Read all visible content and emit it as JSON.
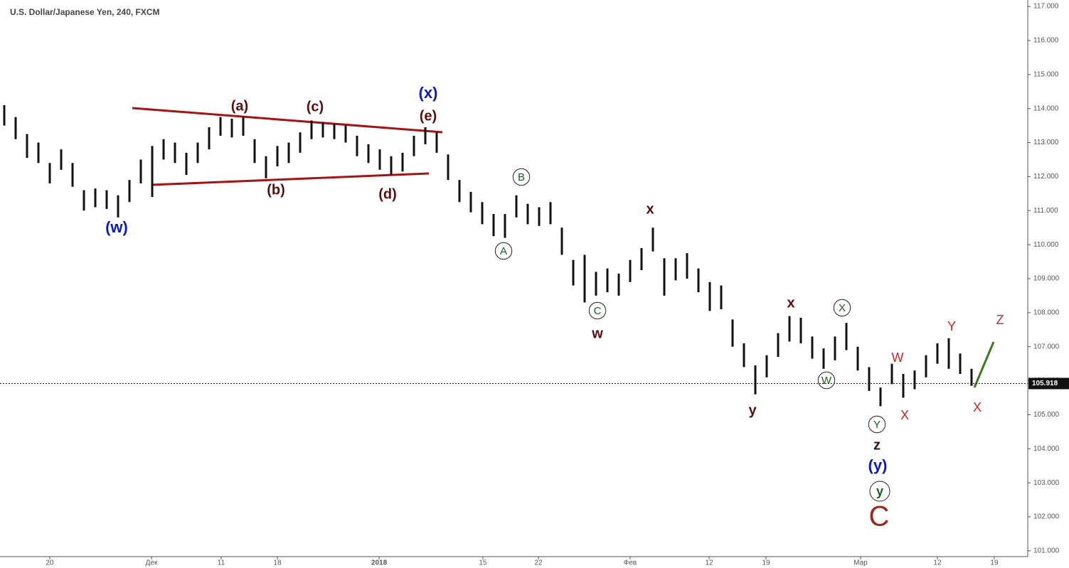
{
  "chart_data": {
    "type": "range-bar",
    "title": "U.S. Dollar/Japanese Yen, 240, FXCM",
    "color": "#111111",
    "x": [
      -4,
      -3,
      -2,
      -1,
      0,
      1,
      2,
      3,
      4,
      5,
      6,
      7,
      8,
      9,
      10,
      11,
      12,
      13,
      14,
      15,
      16,
      17,
      18,
      19,
      20,
      21,
      22,
      23,
      24,
      25,
      26,
      27,
      28,
      29,
      30,
      31,
      32,
      33,
      34,
      35,
      36,
      37,
      38,
      39,
      40,
      41,
      42,
      43,
      44,
      45,
      46,
      47,
      48,
      49,
      50,
      51,
      52,
      53,
      54,
      55,
      56,
      57,
      58,
      59,
      60,
      61,
      62,
      63,
      64,
      65,
      66,
      67,
      68,
      69,
      70,
      71,
      72,
      73,
      74,
      75,
      76,
      77,
      78,
      79,
      80,
      81
    ],
    "low": [
      113.5,
      113.1,
      112.55,
      112.4,
      111.8,
      112.2,
      111.7,
      111.0,
      111.1,
      111.05,
      110.8,
      111.25,
      111.8,
      111.4,
      112.5,
      112.4,
      112.05,
      112.4,
      112.8,
      113.2,
      113.15,
      113.2,
      112.4,
      111.95,
      112.3,
      112.4,
      112.7,
      113.1,
      113.15,
      113.1,
      113.0,
      112.6,
      112.4,
      112.2,
      112.05,
      112.15,
      112.6,
      112.95,
      112.7,
      111.9,
      111.25,
      110.95,
      110.6,
      110.25,
      110.2,
      110.8,
      110.6,
      110.55,
      110.6,
      109.7,
      108.8,
      108.3,
      108.5,
      108.6,
      108.5,
      108.9,
      109.25,
      109.8,
      108.5,
      108.95,
      109.0,
      108.6,
      108.05,
      108.1,
      107.0,
      106.4,
      105.6,
      106.1,
      106.7,
      107.15,
      107.1,
      106.65,
      106.35,
      106.6,
      106.9,
      106.3,
      105.7,
      105.25,
      105.9,
      105.5,
      105.75,
      106.1,
      106.5,
      106.35,
      106.2,
      105.85
    ],
    "high": [
      114.1,
      113.75,
      113.25,
      113.0,
      112.4,
      112.8,
      112.4,
      111.6,
      111.65,
      111.6,
      111.45,
      111.9,
      112.5,
      112.9,
      113.1,
      113.0,
      112.7,
      113.0,
      113.45,
      113.75,
      113.7,
      113.75,
      113.1,
      112.6,
      112.9,
      113.0,
      113.3,
      113.65,
      113.6,
      113.55,
      113.5,
      113.2,
      112.95,
      112.8,
      112.6,
      112.7,
      113.2,
      113.45,
      113.3,
      112.65,
      111.9,
      111.55,
      111.25,
      110.9,
      110.9,
      111.45,
      111.2,
      111.1,
      111.25,
      110.5,
      109.55,
      109.7,
      109.2,
      109.3,
      109.15,
      109.55,
      109.9,
      110.5,
      109.6,
      109.6,
      109.75,
      109.3,
      108.9,
      108.8,
      107.8,
      107.1,
      106.45,
      106.75,
      107.4,
      107.9,
      107.85,
      107.3,
      106.95,
      107.3,
      107.7,
      107.0,
      106.4,
      105.8,
      106.5,
      106.2,
      106.3,
      106.75,
      107.1,
      107.25,
      106.8,
      106.35
    ],
    "xlim": [
      -4.375,
      85.94
    ],
    "xticks": [
      {
        "value": 0,
        "label": "20"
      },
      {
        "value": 8.94,
        "label": "Дек"
      },
      {
        "value": 15.06,
        "label": "11"
      },
      {
        "value": 20,
        "label": "18"
      },
      {
        "value": 28.94,
        "label": "2018"
      },
      {
        "value": 38.06,
        "label": "15"
      },
      {
        "value": 42.94,
        "label": "22"
      },
      {
        "value": 51,
        "label": "Фев"
      },
      {
        "value": 57.94,
        "label": "12"
      },
      {
        "value": 62.94,
        "label": "19"
      },
      {
        "value": 71.25,
        "label": "Мар"
      },
      {
        "value": 78,
        "label": "12"
      },
      {
        "value": 83,
        "label": "19"
      }
    ],
    "ylim": [
      100.83,
      117.19
    ],
    "yticks": [
      {
        "value": 101,
        "label": "101.000"
      },
      {
        "value": 102,
        "label": "102.000"
      },
      {
        "value": 103,
        "label": "103.000"
      },
      {
        "value": 104,
        "label": "104.000"
      },
      {
        "value": 105,
        "label": "105.000"
      },
      {
        "value": 106,
        "label": "106.000"
      },
      {
        "value": 107,
        "label": "107.000"
      },
      {
        "value": 108,
        "label": "108.000"
      },
      {
        "value": 109,
        "label": "109.000"
      },
      {
        "value": 110,
        "label": "110.000"
      },
      {
        "value": 111,
        "label": "111.000"
      },
      {
        "value": 112,
        "label": "112.000"
      },
      {
        "value": 113,
        "label": "113.000"
      },
      {
        "value": 114,
        "label": "114.000"
      },
      {
        "value": 115,
        "label": "115.000"
      },
      {
        "value": 116,
        "label": "116.000"
      },
      {
        "value": 117,
        "label": "117.000"
      }
    ],
    "last_price": {
      "value": 105.918,
      "label": "105.918"
    },
    "annotations": [
      {
        "text": "(x)",
        "color": "#0b1bb8"
      },
      {
        "text": "(e)",
        "color": "#5a0e0e"
      },
      {
        "text": "(a)",
        "color": "#5a0e0e"
      },
      {
        "text": "(c)",
        "color": "#5a0e0e"
      },
      {
        "text": "(b)",
        "color": "#5a0e0e"
      },
      {
        "text": "(d)",
        "color": "#5a0e0e"
      },
      {
        "text": "(w)",
        "color": "#0b1bb8"
      },
      {
        "text": "B",
        "color": "#1b5e20",
        "circled": true
      },
      {
        "text": "A",
        "color": "#1b5e20",
        "circled": true
      },
      {
        "text": "C",
        "color": "#1b5e20",
        "circled": true
      },
      {
        "text": "x",
        "color": "#5a0e0e"
      },
      {
        "text": "w",
        "color": "#5a0e0e"
      },
      {
        "text": "y",
        "color": "#5a0e0e"
      },
      {
        "text": "x",
        "color": "#5a0e0e"
      },
      {
        "text": "X",
        "color": "#1b5e20",
        "circled": true
      },
      {
        "text": "W",
        "color": "#1b5e20",
        "circled": true
      },
      {
        "text": "Y",
        "color": "#1b5e20",
        "circled": true
      },
      {
        "text": "z",
        "color": "#3a1010"
      },
      {
        "text": "(y)",
        "color": "#0b1bb8"
      },
      {
        "text": "y",
        "color": "#1b5e20",
        "circled": true
      },
      {
        "text": "C",
        "color": "#9a2b1a"
      },
      {
        "text": "W",
        "color": "#c62828"
      },
      {
        "text": "X",
        "color": "#c62828"
      },
      {
        "text": "Y",
        "color": "#c62828"
      },
      {
        "text": "X",
        "color": "#c62828"
      },
      {
        "text": "Z",
        "color": "#c62828"
      }
    ]
  }
}
